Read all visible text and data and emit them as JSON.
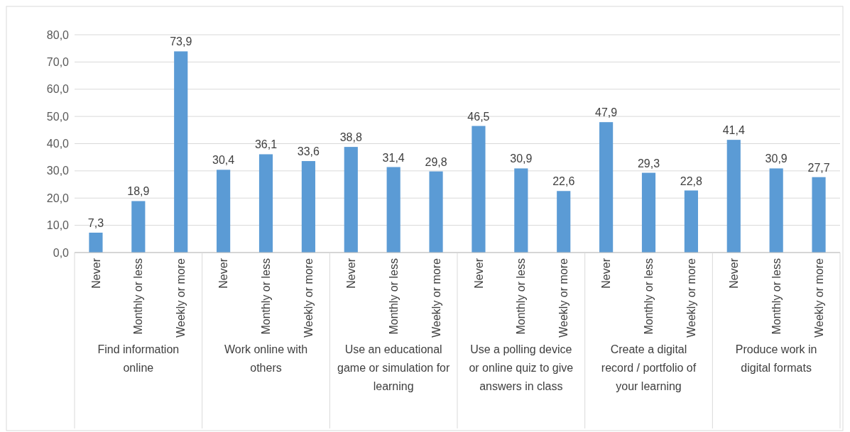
{
  "chart_data": {
    "type": "bar",
    "categories": [
      "Never",
      "Monthly or less",
      "Weekly or more",
      "Never",
      "Monthly or less",
      "Weekly or more",
      "Never",
      "Monthly or less",
      "Weekly or more",
      "Never",
      "Monthly or less",
      "Weekly or more",
      "Never",
      "Monthly or less",
      "Weekly or more",
      "Never",
      "Monthly or less",
      "Weekly or more"
    ],
    "values": [
      7.3,
      18.9,
      73.9,
      30.4,
      36.1,
      33.6,
      38.8,
      31.4,
      29.8,
      46.5,
      30.9,
      22.6,
      47.9,
      29.3,
      22.8,
      41.4,
      30.9,
      27.7
    ],
    "value_labels": [
      "7,3",
      "18,9",
      "73,9",
      "30,4",
      "36,1",
      "33,6",
      "38,8",
      "31,4",
      "29,8",
      "46,5",
      "30,9",
      "22,6",
      "47,9",
      "29,3",
      "22,8",
      "41,4",
      "30,9",
      "27,7"
    ],
    "color": "#5b9bd5",
    "ylim": [
      0,
      80
    ],
    "yticks": [
      {
        "value": 0,
        "label": "0,0"
      },
      {
        "value": 10,
        "label": "10,0"
      },
      {
        "value": 20,
        "label": "20,0"
      },
      {
        "value": 30,
        "label": "30,0"
      },
      {
        "value": 40,
        "label": "40,0"
      },
      {
        "value": 50,
        "label": "50,0"
      },
      {
        "value": 60,
        "label": "60,0"
      },
      {
        "value": 70,
        "label": "70,0"
      },
      {
        "value": 80,
        "label": "80,0"
      }
    ],
    "grid": "y",
    "annotations": [
      "Find information online",
      "Work online with others",
      "Use an educational game or simulation for learning",
      "Use a polling device or online quiz to give answers in class",
      "Create a digital record / portfolio of your learning",
      "Produce work in digital formats"
    ]
  }
}
